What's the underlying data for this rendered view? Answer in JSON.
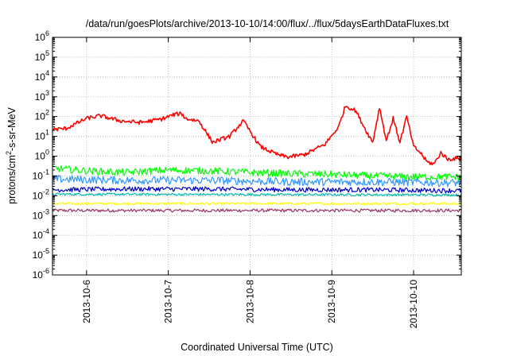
{
  "chart_data": {
    "type": "line",
    "title": "/data/run/goesPlots/archive/2013-10-10/14:00/flux/../flux/5daysEarthDataFluxes.txt",
    "xlabel": "Coordinated Universal Time (UTC)",
    "ylabel_parts": {
      "base": "protons/cm",
      "sup": "2",
      "rest": "-s-sr-MeV"
    },
    "y_scale": "log",
    "ylim": [
      1e-06,
      1000000.0
    ],
    "y_ticks": [
      {
        "value": 1e-06,
        "base": "10",
        "exp": "-6"
      },
      {
        "value": 1e-05,
        "base": "10",
        "exp": "-5"
      },
      {
        "value": 0.0001,
        "base": "10",
        "exp": "-4"
      },
      {
        "value": 0.001,
        "base": "10",
        "exp": "-3"
      },
      {
        "value": 0.01,
        "base": "10",
        "exp": "-2"
      },
      {
        "value": 0.1,
        "base": "10",
        "exp": "-1"
      },
      {
        "value": 1.0,
        "base": "10",
        "exp": "0"
      },
      {
        "value": 10.0,
        "base": "10",
        "exp": "1"
      },
      {
        "value": 100.0,
        "base": "10",
        "exp": "2"
      },
      {
        "value": 1000.0,
        "base": "10",
        "exp": "3"
      },
      {
        "value": 10000.0,
        "base": "10",
        "exp": "4"
      },
      {
        "value": 100000.0,
        "base": "10",
        "exp": "5"
      },
      {
        "value": 1000000.0,
        "base": "10",
        "exp": "6"
      }
    ],
    "xlim": [
      "2013-10-05T14:00",
      "2013-10-10T14:00"
    ],
    "x_ticks": [
      {
        "value": "2013-10-06T00:00",
        "label": "2013-10-6"
      },
      {
        "value": "2013-10-07T00:00",
        "label": "2013-10-7"
      },
      {
        "value": "2013-10-08T00:00",
        "label": "2013-10-8"
      },
      {
        "value": "2013-10-09T00:00",
        "label": "2013-10-9"
      },
      {
        "value": "2013-10-10T00:00",
        "label": "2013-10-10"
      }
    ],
    "grid": true,
    "series": [
      {
        "color": "#ff0000",
        "noise_decades": 0.1,
        "x": [
          "2013-10-05T14:00",
          "2013-10-05T18:00",
          "2013-10-06T00:00",
          "2013-10-06T04:00",
          "2013-10-06T10:00",
          "2013-10-06T16:00",
          "2013-10-06T22:00",
          "2013-10-07T02:00",
          "2013-10-07T04:00",
          "2013-10-07T05:00",
          "2013-10-07T09:00",
          "2013-10-07T13:00",
          "2013-10-07T18:00",
          "2013-10-07T22:00",
          "2013-10-08T03:00",
          "2013-10-08T08:00",
          "2013-10-08T11:00",
          "2013-10-08T16:00",
          "2013-10-08T22:00",
          "2013-10-09T02:00",
          "2013-10-09T04:00",
          "2013-10-09T07:00",
          "2013-10-09T10:00",
          "2013-10-09T12:00",
          "2013-10-09T14:00",
          "2013-10-09T16:00",
          "2013-10-09T18:00",
          "2013-10-09T20:00",
          "2013-10-09T22:00",
          "2013-10-10T00:00",
          "2013-10-10T02:00",
          "2013-10-10T04:00",
          "2013-10-10T06:00",
          "2013-10-10T08:00",
          "2013-10-10T10:00",
          "2013-10-10T14:00"
        ],
        "y": [
          22,
          25,
          80,
          110,
          60,
          50,
          75,
          130,
          140,
          80,
          60,
          5,
          10,
          60,
          3,
          1.2,
          0.9,
          1.2,
          4,
          30,
          350,
          200,
          20,
          5,
          300,
          6,
          80,
          5,
          100,
          3,
          1.5,
          0.5,
          0.4,
          1.5,
          0.7,
          0.8
        ]
      },
      {
        "color": "#00ff00",
        "noise_decades": 0.18,
        "x": [
          "2013-10-05T14:00",
          "2013-10-06T00:00",
          "2013-10-06T12:00",
          "2013-10-07T00:00",
          "2013-10-07T12:00",
          "2013-10-08T00:00",
          "2013-10-08T12:00",
          "2013-10-09T00:00",
          "2013-10-09T12:00",
          "2013-10-10T00:00",
          "2013-10-10T14:00"
        ],
        "y": [
          0.25,
          0.18,
          0.15,
          0.2,
          0.18,
          0.15,
          0.13,
          0.12,
          0.1,
          0.09,
          0.09
        ]
      },
      {
        "color": "#3399ff",
        "noise_decades": 0.2,
        "x": [
          "2013-10-05T14:00",
          "2013-10-06T12:00",
          "2013-10-07T12:00",
          "2013-10-08T12:00",
          "2013-10-09T12:00",
          "2013-10-10T14:00"
        ],
        "y": [
          0.07,
          0.06,
          0.06,
          0.05,
          0.05,
          0.045
        ]
      },
      {
        "color": "#0000cc",
        "noise_decades": 0.12,
        "x": [
          "2013-10-05T14:00",
          "2013-10-06T12:00",
          "2013-10-07T12:00",
          "2013-10-08T12:00",
          "2013-10-09T12:00",
          "2013-10-10T14:00"
        ],
        "y": [
          0.02,
          0.022,
          0.022,
          0.02,
          0.02,
          0.018
        ]
      },
      {
        "color": "#00bbaa",
        "noise_decades": 0.06,
        "x": [
          "2013-10-05T14:00",
          "2013-10-10T14:00"
        ],
        "y": [
          0.012,
          0.011
        ]
      },
      {
        "color": "#ffff00",
        "noise_decades": 0.06,
        "x": [
          "2013-10-05T14:00",
          "2013-10-10T14:00"
        ],
        "y": [
          0.004,
          0.004
        ]
      },
      {
        "color": "#993366",
        "noise_decades": 0.08,
        "x": [
          "2013-10-05T14:00",
          "2013-10-10T14:00"
        ],
        "y": [
          0.0018,
          0.0018
        ]
      }
    ]
  }
}
